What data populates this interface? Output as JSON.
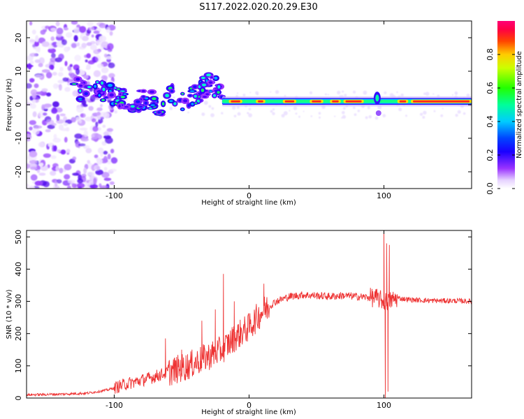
{
  "title": "S117.2022.020.20.29.E30",
  "colors": {
    "snr_line": "#ee3333",
    "frame": "#000000"
  },
  "chart_data": [
    {
      "type": "heatmap",
      "name": "spectrogram",
      "xlabel": "Height of straight line (km)",
      "ylabel": "Frequency (Hz)",
      "xlim": [
        -165,
        165
      ],
      "ylim": [
        -25,
        25
      ],
      "xticks": [
        -100,
        0,
        100
      ],
      "yticks": [
        -20,
        -10,
        0,
        10,
        20
      ],
      "colorbar": {
        "label": "Normalized spectral amplitude",
        "range": [
          0,
          1
        ],
        "ticks": [
          0.0,
          0.2,
          0.4,
          0.6,
          0.8
        ],
        "colormap": "rainbow (white-violet-blue-cyan-green-yellow-red-magenta)"
      },
      "features": {
        "noise_region_x": [
          -165,
          -100
        ],
        "scattered_segment_x": [
          -130,
          -20
        ],
        "steady_tone_x": [
          -20,
          165
        ],
        "steady_tone_frequency_hz": 1,
        "disturbance_x": 95
      }
    },
    {
      "type": "line",
      "name": "snr",
      "xlabel": "Height of straight line (km)",
      "ylabel": "SNR (10 * v/v)",
      "xlim": [
        -165,
        165
      ],
      "ylim": [
        0,
        520
      ],
      "xticks": [
        -100,
        0,
        100
      ],
      "yticks": [
        0,
        100,
        200,
        300,
        400,
        500
      ],
      "series": [
        {
          "name": "SNR",
          "x": [
            -165,
            -140,
            -120,
            -105,
            -90,
            -75,
            -60,
            -45,
            -30,
            -20,
            -10,
            0,
            10,
            20,
            30,
            40,
            50,
            60,
            70,
            80,
            90,
            95,
            100,
            103,
            110,
            120,
            130,
            140,
            150,
            165
          ],
          "values": [
            10,
            12,
            15,
            25,
            45,
            60,
            80,
            100,
            130,
            150,
            190,
            220,
            270,
            300,
            315,
            320,
            318,
            315,
            318,
            315,
            312,
            310,
            300,
            300,
            310,
            305,
            303,
            302,
            302,
            300
          ]
        }
      ],
      "spikes": [
        {
          "x": -62,
          "value": 185
        },
        {
          "x": -50,
          "value": 150
        },
        {
          "x": -35,
          "value": 240
        },
        {
          "x": -25,
          "value": 275
        },
        {
          "x": -19,
          "value": 385
        },
        {
          "x": -11,
          "value": 300
        },
        {
          "x": 11,
          "value": 355
        },
        {
          "x": 100,
          "value": 520
        },
        {
          "x": 101,
          "value": 0
        },
        {
          "x": 102,
          "value": 480
        },
        {
          "x": 103,
          "value": 20
        },
        {
          "x": 104,
          "value": 475
        }
      ]
    }
  ]
}
